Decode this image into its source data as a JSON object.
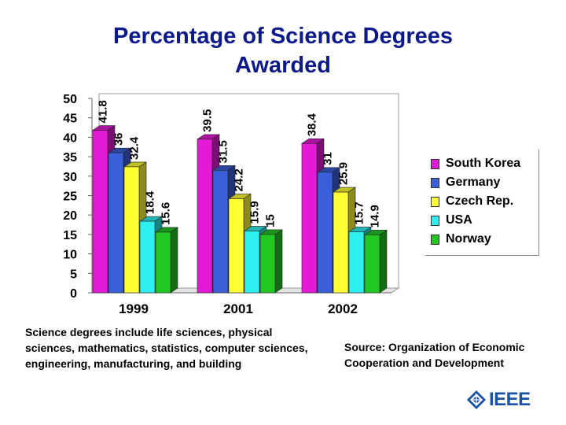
{
  "title_lines": [
    "Percentage of Science Degrees",
    "Awarded"
  ],
  "note_left": "Science degrees include life sciences, physical sciences, mathematics, statistics, computer sciences, engineering, manufacturing, and building",
  "note_right": "Source: Organization of Economic Cooperation and Development",
  "logo": {
    "text": "IEEE",
    "icon": "ieee-diamond-icon"
  },
  "colors": {
    "South Korea": "#e31ad6",
    "Germany": "#3a5fd8",
    "Czech Rep.": "#ffff33",
    "USA": "#2ef0f0",
    "Norway": "#22c822"
  },
  "chart_data": {
    "type": "bar",
    "categories": [
      "1999",
      "2001",
      "2002"
    ],
    "series": [
      {
        "name": "South Korea",
        "values": [
          41.8,
          39.5,
          38.4
        ]
      },
      {
        "name": "Germany",
        "values": [
          36,
          31.5,
          31
        ]
      },
      {
        "name": "Czech Rep.",
        "values": [
          32.4,
          24.2,
          25.9
        ]
      },
      {
        "name": "USA",
        "values": [
          18.4,
          15.9,
          15.7
        ]
      },
      {
        "name": "Norway",
        "values": [
          15.6,
          15,
          14.9
        ]
      }
    ],
    "data_labels": [
      [
        "41.8",
        "39.5",
        "38.4"
      ],
      [
        "36",
        "31.5",
        "31"
      ],
      [
        "32.4",
        "24.2",
        "25.9"
      ],
      [
        "18.4",
        "15.9",
        "15.7"
      ],
      [
        "15.6",
        "15",
        "14.9"
      ]
    ],
    "ylim": [
      0,
      50
    ],
    "yticks": [
      "0",
      "5",
      "10",
      "15",
      "20",
      "25",
      "30",
      "35",
      "40",
      "45",
      "50"
    ],
    "legend_position": "right",
    "grid": false
  }
}
